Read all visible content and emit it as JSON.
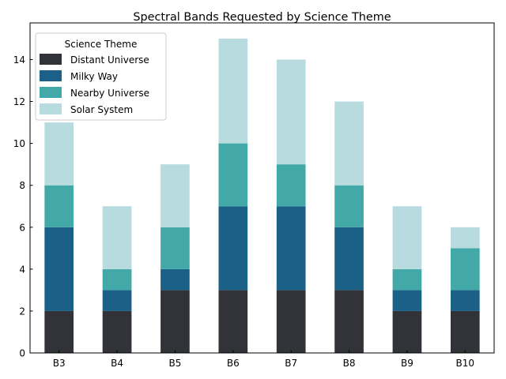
{
  "chart_data": {
    "type": "bar",
    "stacked": true,
    "title": "Spectral Bands Requested by Science Theme",
    "xlabel": "",
    "ylabel": "",
    "ylim": [
      0,
      15.75
    ],
    "yticks": [
      0,
      2,
      4,
      6,
      8,
      10,
      12,
      14
    ],
    "categories": [
      "B3",
      "B4",
      "B5",
      "B6",
      "B7",
      "B8",
      "B9",
      "B10"
    ],
    "series": [
      {
        "name": "Distant Universe",
        "color": "#323338",
        "values": [
          2,
          2,
          3,
          3,
          3,
          3,
          2,
          2
        ]
      },
      {
        "name": "Milky Way",
        "color": "#1b6187",
        "values": [
          4,
          1,
          1,
          4,
          4,
          3,
          1,
          1
        ]
      },
      {
        "name": "Nearby Universe",
        "color": "#42a9a8",
        "values": [
          2,
          1,
          2,
          3,
          2,
          2,
          1,
          2
        ]
      },
      {
        "name": "Solar System",
        "color": "#b8dbdf",
        "values": [
          3,
          3,
          3,
          5,
          5,
          4,
          3,
          1
        ]
      }
    ],
    "legend": {
      "title": "Science Theme",
      "position": "top-left"
    }
  }
}
